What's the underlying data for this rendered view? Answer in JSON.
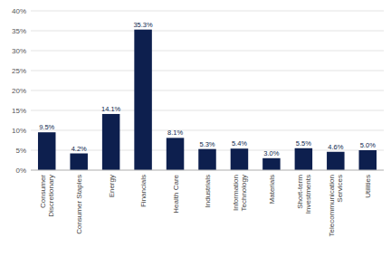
{
  "chart_data": {
    "type": "bar",
    "categories": [
      "Consumer\nDiscretionary",
      "Consumer Staples",
      "Energy",
      "Financials",
      "Health Care",
      "Industrials",
      "Information\nTechnology",
      "Materials",
      "Short-term\nInvestments",
      "Telecommunication\nServices",
      "Utilities"
    ],
    "values": [
      9.5,
      4.2,
      14.1,
      35.3,
      8.1,
      5.3,
      5.4,
      3.0,
      5.5,
      4.6,
      5.0
    ],
    "value_labels": [
      "9.5%",
      "4.2%",
      "14.1%",
      "35.3%",
      "8.1%",
      "5.3%",
      "5.4%",
      "3.0%",
      "5.5%",
      "4.6%",
      "5.0%"
    ],
    "data_labels": true,
    "color": "#0d1f4e",
    "ylim": [
      0,
      40
    ],
    "yticks": [
      {
        "value": 0,
        "label": "0%"
      },
      {
        "value": 5,
        "label": "5%"
      },
      {
        "value": 10,
        "label": "10%"
      },
      {
        "value": 15,
        "label": "15%"
      },
      {
        "value": 20,
        "label": "20%"
      },
      {
        "value": 25,
        "label": "25%"
      },
      {
        "value": 30,
        "label": "30%"
      },
      {
        "value": 35,
        "label": "35%"
      },
      {
        "value": 40,
        "label": "40%"
      }
    ],
    "grid": true
  }
}
